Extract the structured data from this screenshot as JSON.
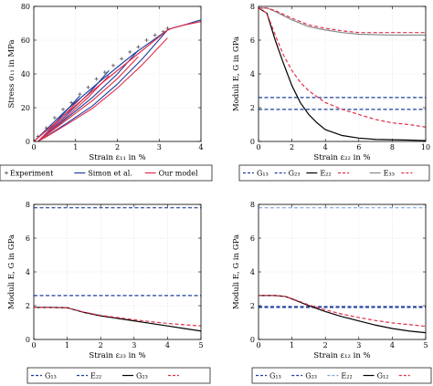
{
  "chart_data": [
    {
      "type": "line",
      "id": "stress-strain",
      "xlabel": "Strain ε₁₁ in %",
      "ylabel": "Stress σ₁₁ in MPa",
      "xlim": [
        0,
        4
      ],
      "ylim": [
        0,
        80
      ],
      "xticks": [
        0,
        1,
        2,
        3,
        4
      ],
      "yticks": [
        0,
        20,
        40,
        60,
        80
      ],
      "legend_position": "below",
      "legend_columns": 3,
      "series": [
        {
          "name": "Experiment",
          "color": "#555555",
          "style": "markers",
          "x": [
            0.1,
            0.3,
            0.5,
            0.7,
            0.9,
            1.1,
            1.3,
            1.5,
            1.7,
            1.9,
            2.1,
            2.3,
            2.5,
            2.7,
            2.9,
            3.1,
            3.2
          ],
          "y": [
            3,
            8,
            14,
            19,
            23,
            28,
            32,
            37,
            41,
            45,
            49,
            53,
            56,
            60,
            63,
            65,
            67
          ]
        },
        {
          "name": "Simon et al.",
          "color": "#1f3f9f",
          "style": "solid",
          "x": [
            0,
            0.8,
            1.6,
            2.4,
            3.2,
            3.3,
            3.6,
            4.0
          ],
          "y": [
            0,
            19,
            36,
            52,
            66,
            67,
            69,
            72
          ]
        },
        {
          "name": "Our model",
          "color": "#e0304a",
          "style": "solid",
          "x": [
            0,
            0.8,
            1.6,
            2.4,
            3.2,
            3.3,
            3.6,
            4.0
          ],
          "y": [
            0,
            17,
            34,
            50,
            66,
            67,
            69,
            71
          ]
        }
      ],
      "loops": [
        {
          "x": [
            3.2,
            2.6,
            2.0,
            1.4,
            0.8,
            0.3,
            0.1
          ],
          "y": [
            66,
            49,
            34,
            21,
            11,
            3,
            0
          ]
        },
        {
          "x": [
            2.5,
            2.0,
            1.4,
            0.8,
            0.3,
            0.1
          ],
          "y": [
            54,
            40,
            26,
            14,
            4,
            0
          ]
        },
        {
          "x": [
            1.8,
            1.3,
            0.8,
            0.3,
            0.1
          ],
          "y": [
            42,
            28,
            16,
            4,
            0
          ]
        },
        {
          "x": [
            1.1,
            0.7,
            0.3,
            0.1
          ],
          "y": [
            27,
            16,
            5,
            0
          ]
        }
      ]
    },
    {
      "type": "line",
      "id": "moduli-e22",
      "xlabel": "Strain ε₂₂ in %",
      "ylabel": "Moduli E, G in GPa",
      "xlim": [
        0,
        10
      ],
      "ylim": [
        0,
        8
      ],
      "xticks": [
        0,
        2,
        4,
        6,
        8,
        10
      ],
      "yticks": [
        0,
        2,
        4,
        6,
        8
      ],
      "legend_position": "below",
      "series": [
        {
          "name": "G₁₃",
          "color": "#1f3f9f",
          "style": "dashed",
          "x": [
            0,
            10
          ],
          "y": [
            2.6,
            2.6
          ]
        },
        {
          "name": "G₂₃",
          "color": "#1f3f9f",
          "style": "dashed",
          "x": [
            0,
            10
          ],
          "y": [
            1.9,
            1.9
          ]
        },
        {
          "name": "E₂₂",
          "color": "#000000",
          "style": "solid",
          "x": [
            0,
            0.5,
            1.0,
            1.5,
            2.0,
            2.5,
            3.0,
            3.5,
            4.0,
            5.0,
            6.0,
            7.0,
            8.0,
            9.0,
            10.0
          ],
          "y": [
            7.9,
            7.6,
            6.0,
            4.6,
            3.3,
            2.3,
            1.6,
            1.1,
            0.7,
            0.35,
            0.2,
            0.12,
            0.1,
            0.08,
            0.05
          ]
        },
        {
          "name": "",
          "color": "#e0304a",
          "style": "dashed",
          "x": [
            0,
            0.5,
            1.0,
            1.5,
            2.0,
            2.5,
            3.0,
            4.0,
            5.0,
            6.0,
            7.0,
            8.0,
            9.0,
            10.0
          ],
          "y": [
            7.9,
            7.6,
            6.3,
            5.1,
            4.2,
            3.5,
            3.0,
            2.3,
            1.9,
            1.6,
            1.3,
            1.1,
            1.0,
            0.85
          ]
        },
        {
          "name": "E₃₃",
          "color": "#888888",
          "style": "solid",
          "x": [
            0,
            0.5,
            1.0,
            2.0,
            3.0,
            4.0,
            5.0,
            6.0,
            8.0,
            10.0
          ],
          "y": [
            7.9,
            7.9,
            7.7,
            7.2,
            6.8,
            6.6,
            6.45,
            6.35,
            6.3,
            6.3
          ]
        },
        {
          "name": "",
          "color": "#e0304a",
          "style": "dashed",
          "x": [
            0,
            0.5,
            1.0,
            2.0,
            3.0,
            4.0,
            5.0,
            6.0,
            8.0,
            10.0
          ],
          "y": [
            7.9,
            7.9,
            7.75,
            7.3,
            6.9,
            6.7,
            6.55,
            6.45,
            6.45,
            6.45
          ]
        }
      ]
    },
    {
      "type": "line",
      "id": "moduli-e23",
      "xlabel": "Strain ε₂₃ in %",
      "ylabel": "Moduli E, G in GPa",
      "xlim": [
        0,
        5
      ],
      "ylim": [
        0,
        8
      ],
      "xticks": [
        0,
        1,
        2,
        3,
        4,
        5
      ],
      "yticks": [
        0,
        2,
        4,
        6,
        8
      ],
      "legend_position": "below",
      "series": [
        {
          "name": "G₁₃",
          "color": "#1f3f9f",
          "style": "dashed",
          "x": [
            0,
            5
          ],
          "y": [
            2.6,
            2.6
          ]
        },
        {
          "name": "E₂₂",
          "color": "#1f3f9f",
          "style": "dashed",
          "x": [
            0,
            5
          ],
          "y": [
            7.8,
            7.8
          ]
        },
        {
          "name": "G₂₃",
          "color": "#000000",
          "style": "solid",
          "x": [
            0,
            0.5,
            1.0,
            1.5,
            2.0,
            2.5,
            3.0,
            3.5,
            4.0,
            4.5,
            5.0
          ],
          "y": [
            1.9,
            1.9,
            1.88,
            1.6,
            1.4,
            1.25,
            1.1,
            0.95,
            0.8,
            0.65,
            0.5
          ]
        },
        {
          "name": "",
          "color": "#e0304a",
          "style": "dashed",
          "x": [
            0,
            0.5,
            1.0,
            1.5,
            2.0,
            2.5,
            3.0,
            3.5,
            4.0,
            4.5,
            5.0
          ],
          "y": [
            1.9,
            1.9,
            1.88,
            1.62,
            1.43,
            1.3,
            1.17,
            1.05,
            0.95,
            0.87,
            0.8
          ]
        }
      ]
    },
    {
      "type": "line",
      "id": "moduli-e12",
      "xlabel": "Strain ε₁₂ in %",
      "ylabel": "Moduli E, G in GPa",
      "xlim": [
        0,
        5
      ],
      "ylim": [
        0,
        8
      ],
      "xticks": [
        0,
        1,
        2,
        3,
        4,
        5
      ],
      "yticks": [
        0,
        2,
        4,
        6,
        8
      ],
      "legend_position": "below",
      "series": [
        {
          "name": "G₁₃",
          "color": "#1f3f9f",
          "style": "dashed",
          "x": [
            0,
            5
          ],
          "y": [
            1.9,
            1.9
          ]
        },
        {
          "name": "G₂₃",
          "color": "#1f3f9f",
          "style": "dashed",
          "x": [
            0,
            5
          ],
          "y": [
            1.95,
            1.95
          ]
        },
        {
          "name": "E₂₂",
          "color": "#7fa8d8",
          "style": "dashed",
          "x": [
            0,
            5
          ],
          "y": [
            7.8,
            7.8
          ]
        },
        {
          "name": "G₁₂",
          "color": "#000000",
          "style": "solid",
          "x": [
            0,
            0.5,
            0.8,
            1.0,
            1.5,
            2.0,
            2.5,
            3.0,
            3.5,
            4.0,
            4.5,
            5.0
          ],
          "y": [
            2.6,
            2.6,
            2.55,
            2.4,
            2.0,
            1.65,
            1.35,
            1.1,
            0.85,
            0.65,
            0.5,
            0.4
          ]
        },
        {
          "name": "",
          "color": "#e0304a",
          "style": "dashed",
          "x": [
            0,
            0.5,
            0.8,
            1.0,
            1.5,
            2.0,
            2.5,
            3.0,
            3.5,
            4.0,
            4.5,
            5.0
          ],
          "y": [
            2.6,
            2.6,
            2.55,
            2.42,
            2.05,
            1.75,
            1.5,
            1.3,
            1.12,
            0.98,
            0.88,
            0.78
          ]
        }
      ]
    }
  ]
}
